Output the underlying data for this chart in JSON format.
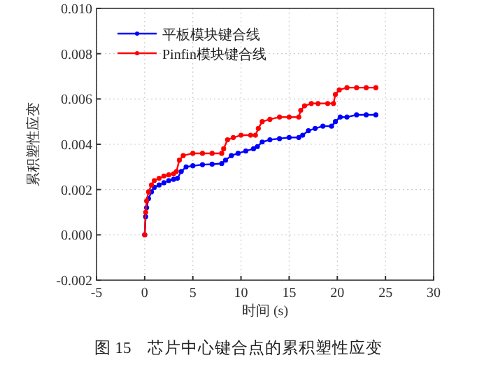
{
  "chart_data": {
    "type": "line",
    "xlabel": "时间 (s)",
    "ylabel": "累积塑性应变",
    "annotations": [
      "图 15　芯片中心键合点的累积塑性应变"
    ],
    "xlim": [
      -5,
      30
    ],
    "xticks": [
      -5,
      0,
      5,
      10,
      15,
      20,
      25,
      30
    ],
    "ylim": [
      -0.002,
      0.01
    ],
    "yticks": [
      {
        "value": -0.002,
        "label": "-0.002"
      },
      {
        "value": 0,
        "label": "0.000"
      },
      {
        "value": 0.002,
        "label": "0.002"
      },
      {
        "value": 0.004,
        "label": "0.004"
      },
      {
        "value": 0.006,
        "label": "0.006"
      },
      {
        "value": 0.008,
        "label": "0.008"
      },
      {
        "value": 0.01,
        "label": "0.010"
      }
    ],
    "grid": true,
    "legend": "top left",
    "marker": "circle",
    "line_style": "solid",
    "series": [
      {
        "name": "平板模块键合线",
        "color": "#0000ff",
        "x": [
          0,
          0.1,
          0.2,
          0.4,
          0.7,
          1,
          1.5,
          2,
          2.5,
          3,
          3.4,
          3.8,
          4.3,
          5,
          6,
          7,
          8,
          8.4,
          9,
          9.7,
          10.5,
          11.3,
          11.7,
          12.2,
          13,
          14,
          15,
          16,
          16.4,
          17,
          17.7,
          18.5,
          19.4,
          19.8,
          20.3,
          21,
          22,
          23,
          24
        ],
        "values": [
          0,
          0.0008,
          0.0012,
          0.0016,
          0.0019,
          0.0021,
          0.0022,
          0.0023,
          0.0024,
          0.00245,
          0.0025,
          0.0028,
          0.003,
          0.00305,
          0.0031,
          0.00312,
          0.00315,
          0.0033,
          0.0035,
          0.0036,
          0.0037,
          0.0038,
          0.0039,
          0.0041,
          0.0042,
          0.00425,
          0.0043,
          0.0043,
          0.0044,
          0.0046,
          0.0047,
          0.0048,
          0.0048,
          0.005,
          0.0052,
          0.0052,
          0.0053,
          0.0053,
          0.0053
        ]
      },
      {
        "name": "Pinfin模块键合线",
        "color": "#ff0000",
        "x": [
          0,
          0.1,
          0.2,
          0.4,
          0.7,
          1,
          1.5,
          2,
          2.5,
          3,
          3.3,
          3.6,
          4,
          5,
          6,
          7,
          8,
          8.2,
          8.6,
          9.2,
          10,
          11,
          11.5,
          11.8,
          12.2,
          13,
          14,
          15,
          16,
          16.2,
          16.6,
          17.3,
          18,
          19,
          19.6,
          19.8,
          20.2,
          21,
          22,
          23,
          24
        ],
        "values": [
          0,
          0.001,
          0.0015,
          0.0019,
          0.0022,
          0.0024,
          0.0025,
          0.0026,
          0.00265,
          0.0027,
          0.0028,
          0.0033,
          0.0035,
          0.0036,
          0.0036,
          0.0036,
          0.0036,
          0.0038,
          0.0042,
          0.0043,
          0.0044,
          0.0044,
          0.0044,
          0.0047,
          0.005,
          0.0051,
          0.0052,
          0.0052,
          0.0052,
          0.0055,
          0.0057,
          0.0058,
          0.0058,
          0.0058,
          0.0058,
          0.0062,
          0.0064,
          0.0065,
          0.0065,
          0.0065,
          0.0065
        ]
      }
    ]
  }
}
